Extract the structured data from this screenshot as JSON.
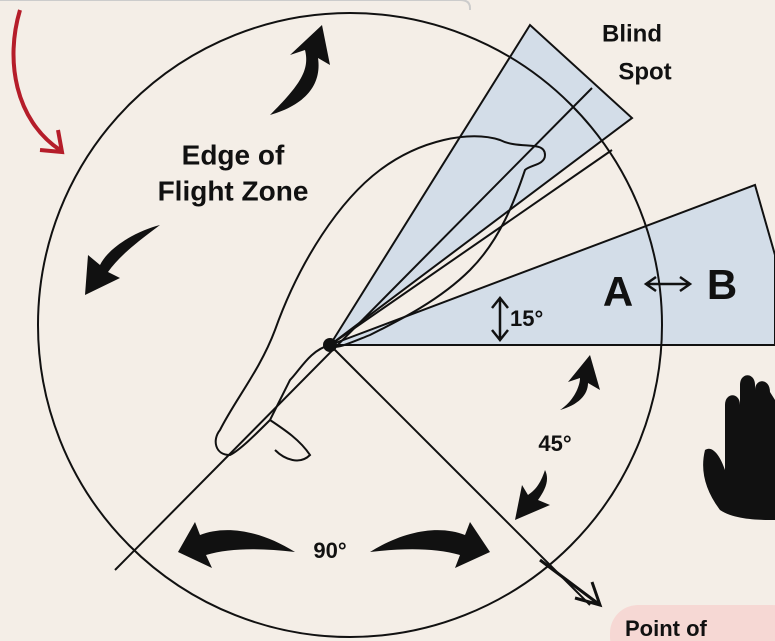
{
  "labels": {
    "blind_spot": [
      "Blind",
      "Spot"
    ],
    "edge_of_flight_zone": [
      "Edge of",
      "Flight Zone"
    ],
    "angle_15": "15°",
    "point_a": "A",
    "point_b": "B",
    "angle_45": "45°",
    "angle_90": "90°",
    "point_of": "Point of"
  }
}
